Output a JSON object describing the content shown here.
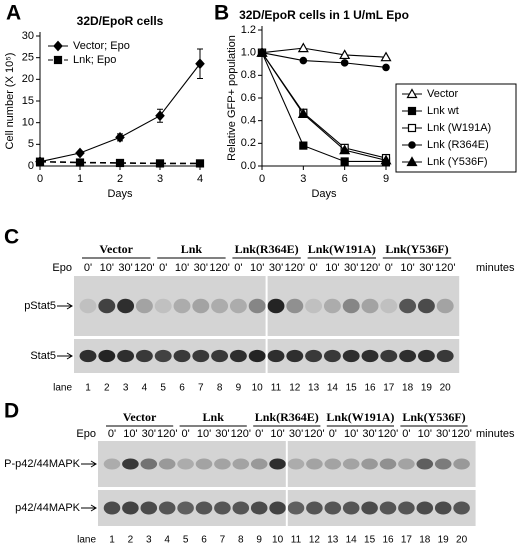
{
  "panels": {
    "a": "A",
    "b": "B",
    "c": "C",
    "d": "D"
  },
  "chart_data": [
    {
      "type": "line",
      "title": "32D/EpoR cells",
      "xlabel": "Days",
      "ylabel": "Cell number (X 10⁵)",
      "x": [
        0,
        1,
        2,
        3,
        4
      ],
      "xlim": [
        0,
        4
      ],
      "xticks": [
        0,
        1,
        2,
        3,
        4
      ],
      "ylim": [
        0,
        30
      ],
      "yticks": [
        0,
        5,
        10,
        15,
        20,
        25,
        30
      ],
      "legend": "upper left",
      "series": [
        {
          "name": "Vector; Epo",
          "color": "#000000",
          "marker": "diamond",
          "line": "solid",
          "values": [
            1,
            3,
            6.6,
            11.6,
            23.6
          ],
          "errors": [
            0.2,
            0.3,
            0.8,
            1.5,
            3.4
          ]
        },
        {
          "name": "Lnk; Epo",
          "color": "#000000",
          "marker": "square",
          "line": "dashed",
          "values": [
            1,
            0.8,
            0.7,
            0.6,
            0.6
          ]
        }
      ]
    },
    {
      "type": "line",
      "title": "32D/EpoR cells in 1 U/mL Epo",
      "xlabel": "Days",
      "ylabel": "Relative GFP+ population",
      "x": [
        0,
        3,
        6,
        9
      ],
      "xlim": [
        0,
        9
      ],
      "xticks": [
        0,
        3,
        6,
        9
      ],
      "ylim": [
        0,
        1.2
      ],
      "yticks": [
        {
          "value": 0,
          "label": "0.0"
        },
        0.2,
        0.4,
        0.6,
        0.8,
        {
          "value": 1,
          "label": "1.0"
        },
        1.2
      ],
      "legend": "outside right",
      "series": [
        {
          "name": "Vector",
          "color": "#000000",
          "marker": "triangle-open",
          "line": "solid",
          "values": [
            1,
            1.04,
            0.98,
            0.96
          ]
        },
        {
          "name": "Lnk wt",
          "color": "#000000",
          "marker": "square",
          "line": "solid",
          "values": [
            1,
            0.18,
            0.04,
            0.04
          ]
        },
        {
          "name": "Lnk (W191A)",
          "color": "#000000",
          "marker": "square-open",
          "line": "solid",
          "values": [
            1,
            0.47,
            0.16,
            0.07
          ]
        },
        {
          "name": "Lnk (R364E)",
          "color": "#000000",
          "marker": "circle",
          "line": "solid",
          "values": [
            1,
            0.93,
            0.91,
            0.87
          ]
        },
        {
          "name": "Lnk (Y536F)",
          "color": "#000000",
          "marker": "triangle",
          "line": "solid",
          "values": [
            1,
            0.46,
            0.14,
            0.05
          ]
        }
      ]
    }
  ],
  "blots": [
    {
      "treatment": "Epo",
      "unit": "minutes",
      "groups": [
        "Vector",
        "Lnk",
        "Lnk(R364E)",
        "Lnk(W191A)",
        "Lnk(Y536F)"
      ],
      "times": [
        "0'",
        "10'",
        "30'",
        "120'"
      ],
      "rows": [
        "pStat5",
        "Stat5"
      ],
      "lane_label": "lane",
      "lanes": [
        1,
        2,
        3,
        4,
        5,
        6,
        7,
        8,
        9,
        10,
        11,
        12,
        13,
        14,
        15,
        16,
        17,
        18,
        19,
        20
      ]
    },
    {
      "treatment": "Epo",
      "unit": "minutes",
      "groups": [
        "Vector",
        "Lnk",
        "Lnk(R364E)",
        "Lnk(W191A)",
        "Lnk(Y536F)"
      ],
      "times": [
        "0'",
        "10'",
        "30'",
        "120'"
      ],
      "rows": [
        "P-p42/44MAPK",
        "p42/44MAPK"
      ],
      "lane_label": "lane",
      "lanes": [
        1,
        2,
        3,
        4,
        5,
        6,
        7,
        8,
        9,
        10,
        11,
        12,
        13,
        14,
        15,
        16,
        17,
        18,
        19,
        20
      ]
    }
  ]
}
